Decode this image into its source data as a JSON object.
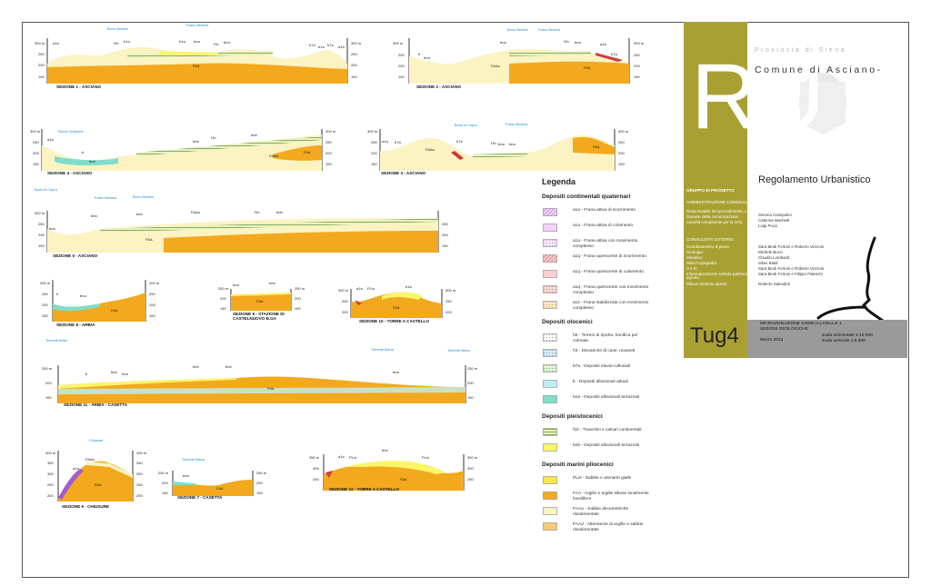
{
  "sections": [
    {
      "id": "s1",
      "name": "SEZIONE 1 - ASCIANO",
      "labels": [
        "Borro Bestino",
        "Fosso Bestina",
        "a1a",
        "b1a",
        "f1b",
        "b1a",
        "bna",
        "f1b",
        "bna",
        "b7a",
        "b1a",
        "b7a",
        "a1a",
        "FAA"
      ],
      "scale": [
        "300 m",
        "250",
        "200",
        "150"
      ]
    },
    {
      "id": "s2",
      "name": "SEZIONE 2 - ASCIANO",
      "labels": [
        "Borro Bestino",
        "Fosso Bestina",
        "bna",
        "f1b",
        "bna",
        "a1a",
        "b",
        "bna",
        "FAAa",
        "FAA",
        "b7a"
      ],
      "scale": [
        "300 m",
        "250",
        "200",
        "150"
      ]
    },
    {
      "id": "s3",
      "name": "SEZIONE 3 - ASCIANO",
      "labels": [
        "Borro la Copra",
        "Fosso Bestina",
        "a1q",
        "b7a",
        "FAAa",
        "b7a",
        "f1b",
        "bna",
        "bna",
        "FAA"
      ],
      "scale": [
        "300 m",
        "250",
        "200",
        "150"
      ]
    },
    {
      "id": "s4",
      "name": "SEZIONE 4 - ASCIANO",
      "labels": [
        "Fiume Ombrone",
        "a1a",
        "b",
        "bna",
        "bnb",
        "f1b",
        "bnb",
        "FAAa",
        "FAA"
      ],
      "scale": [
        "300 m",
        "250",
        "200",
        "150"
      ]
    },
    {
      "id": "s5",
      "name": "SEZIONE 5 - ASCIANO",
      "labels": [
        "Borro la Copra",
        "Fosso Bestina",
        "Borro Bestino",
        "bna",
        "bnb",
        "bnb",
        "f1b",
        "bnb",
        "FAAa",
        "FAA"
      ],
      "scale": [
        "300 m",
        "250",
        "200",
        "150"
      ]
    },
    {
      "id": "s8",
      "name": "SEZIONE 8 - ARBIA",
      "labels": [
        "b",
        "bna",
        "FAA"
      ],
      "scale": [
        "200 m",
        "250",
        "200",
        "150"
      ]
    },
    {
      "id": "s9",
      "name": "SEZIONE 9 - STAZIONE DI CASTELNUOVO B.GA",
      "labels": [
        "bna",
        "bnb",
        "FAA"
      ],
      "scale": [
        "250 m",
        "200",
        "150"
      ]
    },
    {
      "id": "s10",
      "name": "SEZIONE 10 - TORRE A CASTELLO",
      "labels": [
        "a1a",
        "PL/s",
        "b1a",
        "FAA"
      ],
      "scale": [
        "300 m",
        "250",
        "200"
      ]
    },
    {
      "id": "s11",
      "name": "SEZIONE 11 - ARBIA - CASETTA",
      "labels": [
        "Torrente Arbia",
        "Torrente Biana",
        "Torrente Biana",
        "b",
        "bna",
        "bna",
        "bnb",
        "bnb",
        "bna",
        "FAA"
      ],
      "scale": [
        "250 m",
        "200",
        "150"
      ]
    },
    {
      "id": "s6",
      "name": "SEZIONE 6 - CHIUSURE",
      "labels": [
        "Chiusure",
        "a1a",
        "FAAa",
        "FAA"
      ],
      "scale": [
        "400 m",
        "350",
        "300",
        "250",
        "200"
      ]
    },
    {
      "id": "s7",
      "name": "SEZIONE 7 - CASETTA",
      "labels": [
        "Torrente Biana",
        "bna",
        "FAA"
      ],
      "scale": [
        "250 m",
        "200",
        "150"
      ]
    },
    {
      "id": "s12",
      "name": "SEZIONE 12 - TORRE A CASTELLO",
      "labels": [
        "a1a",
        "PL/s",
        "bnb",
        "PL/s",
        "FAA"
      ],
      "scale": [
        "350 m",
        "300",
        "250"
      ]
    }
  ],
  "legend": {
    "title": "Legenda",
    "groups": [
      {
        "title": "Depositi continentali quaternari",
        "items": [
          {
            "code": "a1a",
            "text": "a1a - Frana attiva di scorrimento",
            "color": "#e7c6f3",
            "pattern": "hatch-purple"
          },
          {
            "code": "a1a2",
            "text": "a1a - Frana attiva di colamento",
            "color": "#f1d2f6",
            "pattern": "plain"
          },
          {
            "code": "a1a3",
            "text": "a1a - Frana attiva con movimento complesso",
            "color": "#f4dcf2",
            "pattern": "dots"
          },
          {
            "code": "a1q",
            "text": "a1q - Frana quiescente di scorrimento",
            "color": "#f7c2c2",
            "pattern": "hatch-red"
          },
          {
            "code": "a1q2",
            "text": "a1q - Frana quiescente di colamento",
            "color": "#f8d0d0",
            "pattern": "plain"
          },
          {
            "code": "a1q3",
            "text": "a1q - Frana quiescente con movimento complesso",
            "color": "#f7d7d7",
            "pattern": "dots-red"
          },
          {
            "code": "a1s",
            "text": "a1s - Frana stabilizzata con movimento complesso",
            "color": "#fbe3c7",
            "pattern": "dots-orange"
          }
        ]
      },
      {
        "title": "Depositi olocenici",
        "items": [
          {
            "code": "h5",
            "text": "h5 - Terreni di riporto, bonifica per colmata",
            "color": "#ffffff",
            "pattern": "dots-grey"
          },
          {
            "code": "h3",
            "text": "h3 - Discariche di cave, ravaneti",
            "color": "#d8ecf5",
            "pattern": "dots-blue"
          },
          {
            "code": "b7a",
            "text": "b7a - Depositi eluvio-colluviali",
            "color": "#dff1d4",
            "pattern": "dots-green"
          },
          {
            "code": "b",
            "text": "b - Depositi alluvionali attuali",
            "color": "#bfeff0",
            "pattern": "plain"
          },
          {
            "code": "bna",
            "text": "bna - Depositi alluvionali terrazzati",
            "color": "#7fdec9",
            "pattern": "plain"
          }
        ]
      },
      {
        "title": "Depositi pleistocenici",
        "items": [
          {
            "code": "f1b",
            "text": "f1b - Travertini e calcari continentali",
            "color": "#d6e9a5",
            "pattern": "hatch-green"
          },
          {
            "code": "bnb",
            "text": "bnb - Depositi alluvionali terrazzati",
            "color": "#fbf56a",
            "pattern": "plain"
          }
        ]
      },
      {
        "title": "Depositi marini pliocenici",
        "items": [
          {
            "code": "PLIs",
            "text": "PLIs - Sabbie e arenarie gialle",
            "color": "#f6e84a",
            "pattern": "plain"
          },
          {
            "code": "FAA",
            "text": "FAA - Argille e argille siltose localmente fossilifere",
            "color": "#f3a91d",
            "pattern": "plain"
          },
          {
            "code": "FAAa",
            "text": "FAAa - Sabbie decametriche risedimentate",
            "color": "#fbf3c2",
            "pattern": "plain"
          },
          {
            "code": "FAAd",
            "text": "FAAd - Alternanze di argille e sabbie risedimentate",
            "color": "#f7c97a",
            "pattern": "plain"
          }
        ]
      }
    ]
  },
  "title_block": {
    "provincia": "Provincia di Siena",
    "comune": "Comune di Asciano-",
    "logo_letters": "RU",
    "regolamento": "Regolamento Urbanistico",
    "gruppo": "GRUPPO DI PROGETTO",
    "amministrazione": "AMMINISTRAZIONE COMUNALE:",
    "roles": [
      {
        "role": "Responsabile del procedimento, e progettista :",
        "name": "Simona Ciampolini"
      },
      {
        "role": "Garante della comunicazione:",
        "name": "Caterina Machetti"
      },
      {
        "role": "Autorità competente per la VAS:",
        "name": "Luigi Pucci"
      }
    ],
    "consulenti": "CONSULENTI ESTERNI:",
    "consultants": [
      {
        "role": "Coordinamento di piano:",
        "name": "Sara Bindi Fortoni e Roberto Vezzosi"
      },
      {
        "role": "Geologia:",
        "name": "Michele Bocci"
      },
      {
        "role": "Idraulica:",
        "name": "Claudio Lombardi"
      },
      {
        "role": "Rilievi topografici:",
        "name": "Silvio Baldi"
      },
      {
        "role": "V.A.S.:",
        "name": "Sara Bindi Fortoni e Roberto Vezzosi"
      },
      {
        "role": "Informatizzazione schede patrimonio agrario:",
        "name": "Sara Bindi Fortoni e Filippo Paleschi"
      },
      {
        "role": "Rilievo territorio aperto:",
        "name": "Roberto Salvadori"
      }
    ],
    "tavola": "Tug4",
    "description_1": "MICROZONAZIONE SISMICA LIVELLO 1",
    "description_2": "SEZIONI GEOLOGICHE",
    "date": "Marzo 2014",
    "scale_h": "scala orizzontale 1:10.000",
    "scale_v": "scala verticale 1:5.000"
  }
}
